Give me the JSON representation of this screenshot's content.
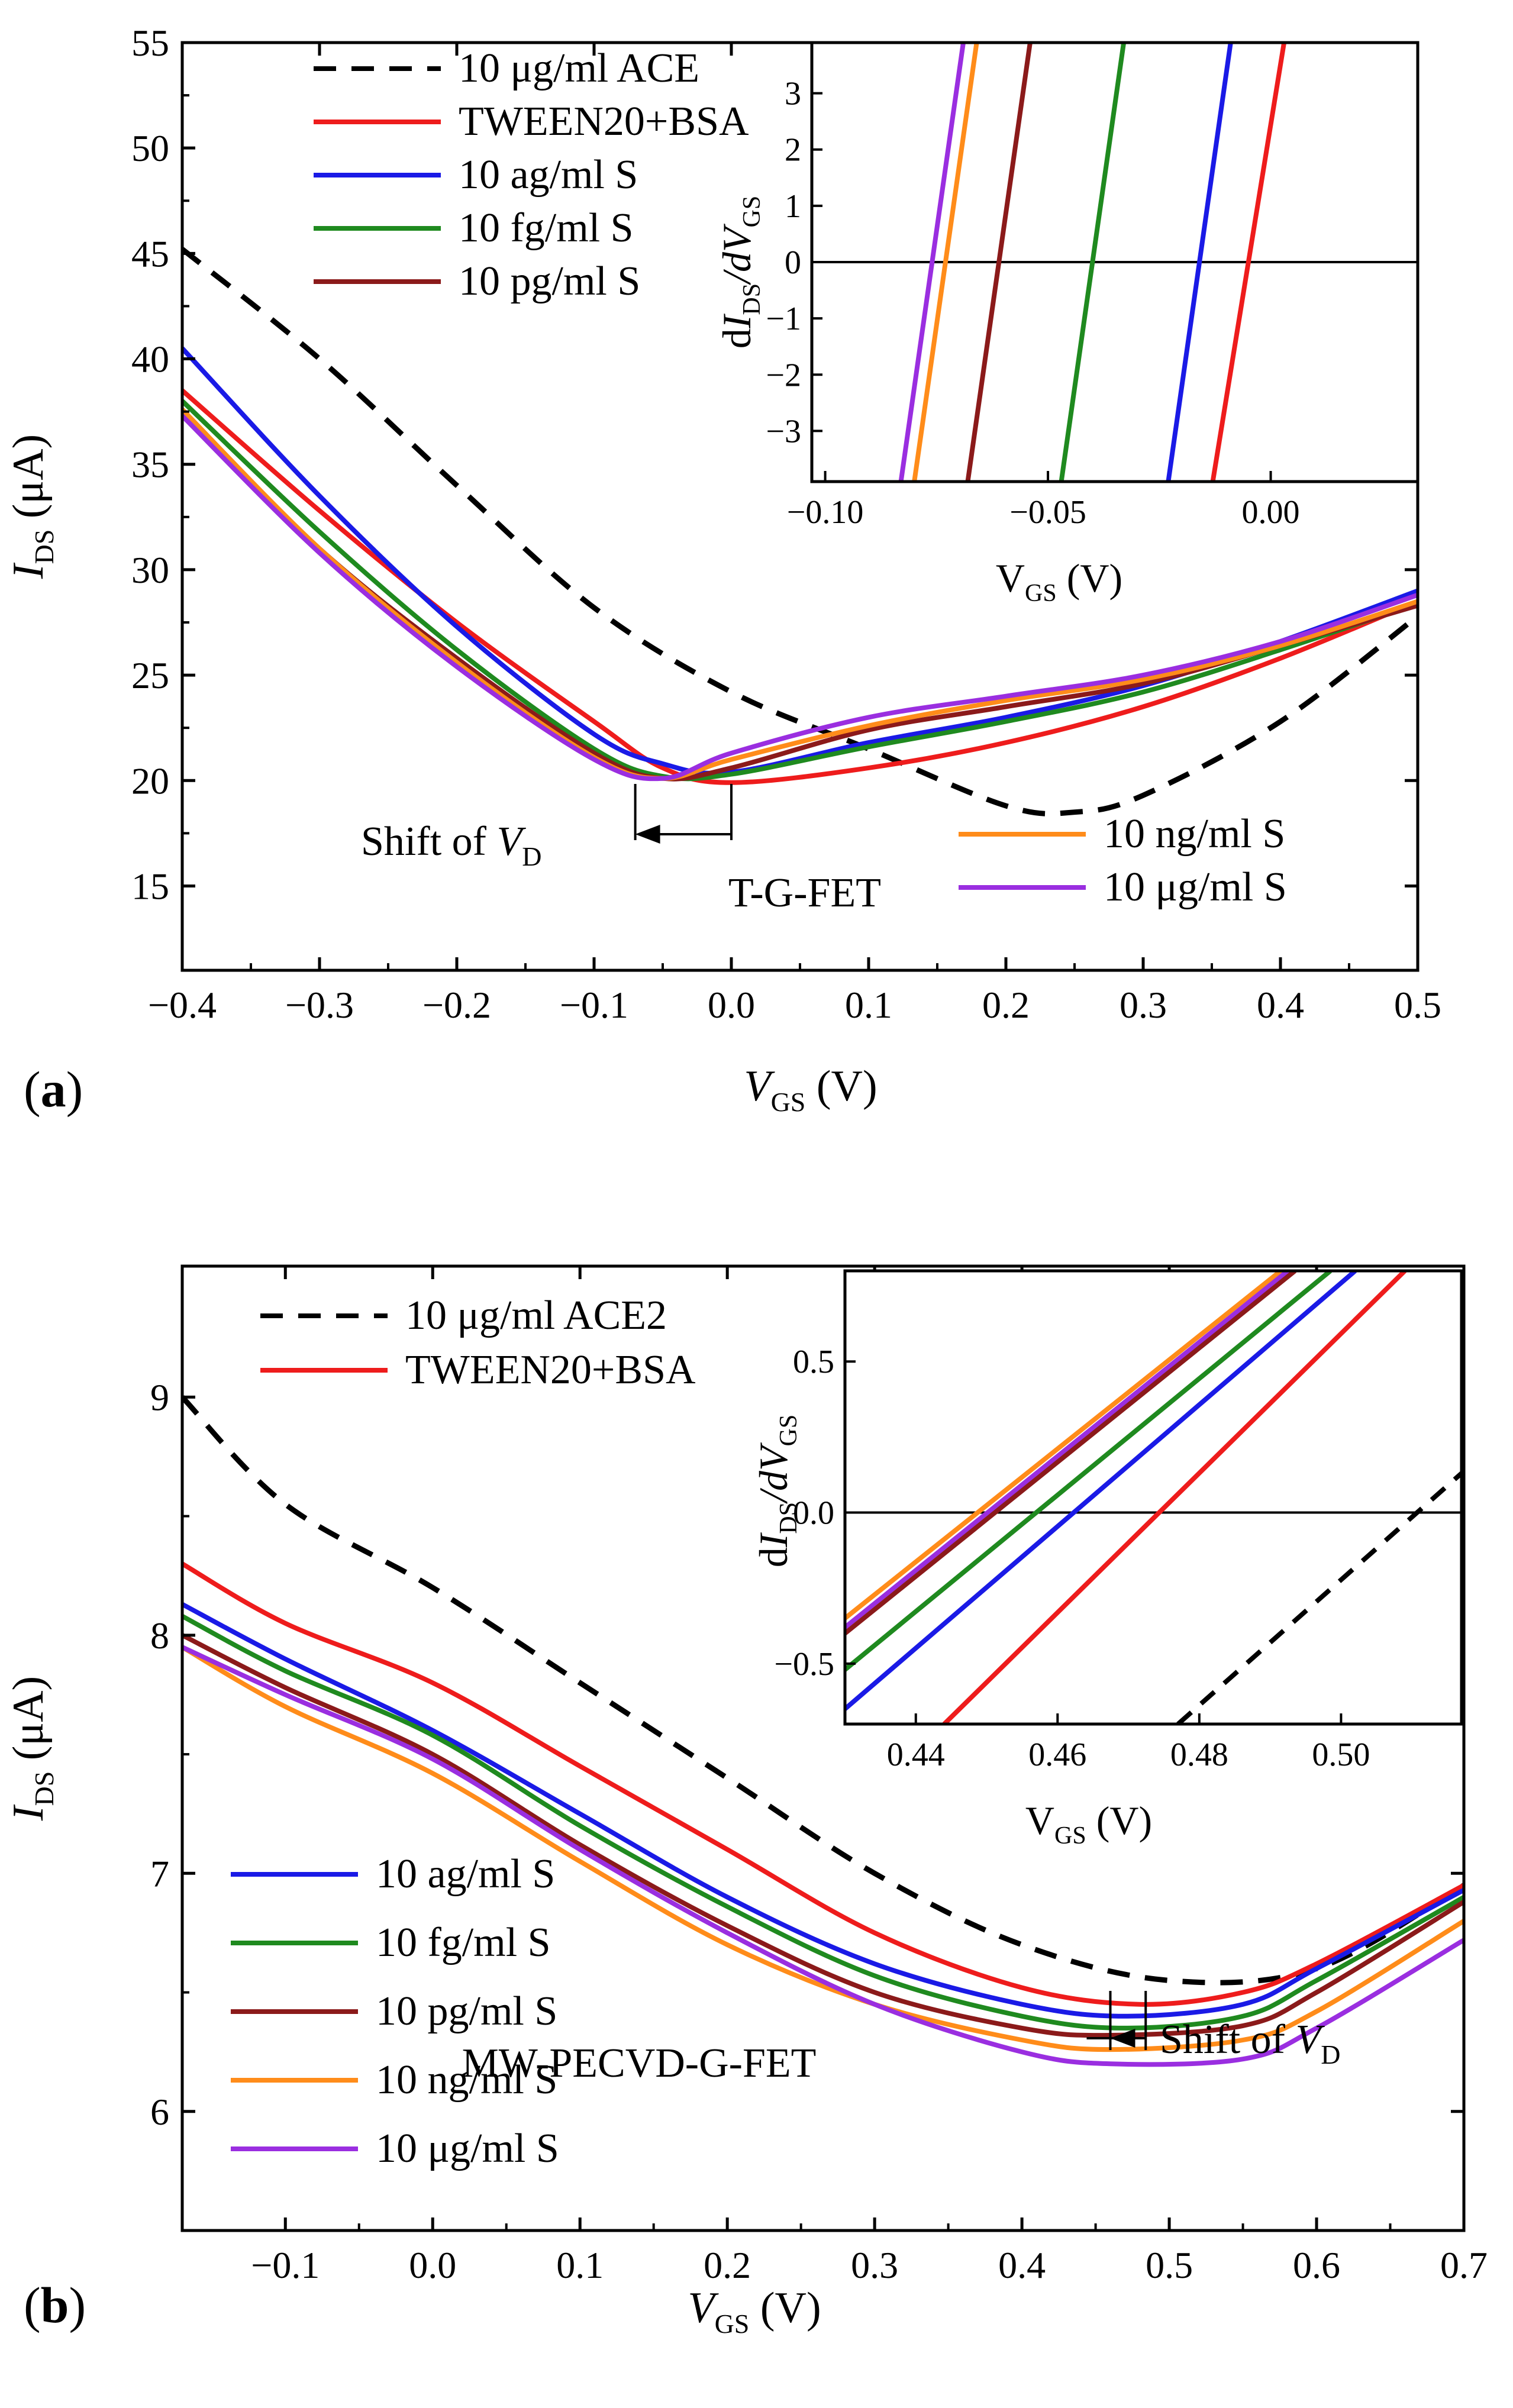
{
  "colors": {
    "ace": "#000000",
    "tween": "#ee1c1c",
    "ag": "#1a1ae6",
    "fg": "#1f8a1f",
    "pg": "#8b1a1a",
    "ng": "#ff8c1a",
    "ug": "#9a2ee0"
  },
  "chart_data": [
    {
      "id": "a",
      "type": "line",
      "panel_label": "a",
      "device": "T-G-FET",
      "title": "",
      "xlabel": {
        "main": "V",
        "sub": "GS",
        "unit": " (V)"
      },
      "ylabel": {
        "main": "I",
        "sub": "DS",
        "unit": " (μA)"
      },
      "xlim": [
        -0.4,
        0.5
      ],
      "ylim": [
        11,
        55
      ],
      "xticks": [
        -0.4,
        -0.3,
        -0.2,
        -0.1,
        0.0,
        0.1,
        0.2,
        0.3,
        0.4,
        0.5
      ],
      "xtick_labels": [
        "−0.4",
        "−0.3",
        "−0.2",
        "−0.1",
        "0.0",
        "0.1",
        "0.2",
        "0.3",
        "0.4",
        "0.5"
      ],
      "yticks": [
        15,
        20,
        25,
        30,
        35,
        40,
        45,
        50,
        55
      ],
      "ytick_labels": [
        "15",
        "20",
        "25",
        "30",
        "35",
        "40",
        "45",
        "50",
        "55"
      ],
      "annotation": {
        "text": "Shift of ",
        "var": "V",
        "sub": "D",
        "from_x": -0.07,
        "to_x": 0.0
      },
      "series": [
        {
          "name": "10 μg/ml ACE",
          "color_key": "ace",
          "dashed": true,
          "x": [
            -0.4,
            -0.3,
            -0.2,
            -0.1,
            0.0,
            0.1,
            0.2,
            0.25,
            0.3,
            0.4,
            0.5
          ],
          "y": [
            45.2,
            40.0,
            34.0,
            28.2,
            24.2,
            21.5,
            18.8,
            18.5,
            19.3,
            22.8,
            27.8
          ]
        },
        {
          "name": "TWEEN20+BSA",
          "color_key": "tween",
          "dashed": false,
          "x": [
            -0.4,
            -0.3,
            -0.2,
            -0.1,
            -0.05,
            0.0,
            0.1,
            0.2,
            0.3,
            0.4,
            0.5
          ],
          "y": [
            38.5,
            32.8,
            27.5,
            22.8,
            20.6,
            19.9,
            20.6,
            21.8,
            23.5,
            25.8,
            28.5
          ]
        },
        {
          "name": "10 ag/ml S",
          "color_key": "ag",
          "dashed": false,
          "x": [
            -0.4,
            -0.3,
            -0.2,
            -0.1,
            -0.05,
            0.0,
            0.1,
            0.2,
            0.3,
            0.4,
            0.5
          ],
          "y": [
            40.5,
            33.5,
            27.3,
            22.2,
            20.8,
            20.4,
            21.8,
            23.0,
            24.5,
            26.6,
            29.0
          ]
        },
        {
          "name": "10 fg/ml S",
          "color_key": "fg",
          "dashed": false,
          "x": [
            -0.4,
            -0.3,
            -0.2,
            -0.1,
            -0.05,
            0.0,
            0.1,
            0.2,
            0.3,
            0.4,
            0.5
          ],
          "y": [
            38.0,
            31.8,
            26.2,
            21.5,
            20.2,
            20.3,
            21.6,
            22.8,
            24.2,
            26.2,
            28.4
          ]
        },
        {
          "name": "10 pg/ml S",
          "color_key": "pg",
          "dashed": false,
          "x": [
            -0.4,
            -0.3,
            -0.2,
            -0.1,
            -0.05,
            0.0,
            0.1,
            0.2,
            0.3,
            0.4,
            0.5
          ],
          "y": [
            37.5,
            31.0,
            25.8,
            21.3,
            20.1,
            20.6,
            22.4,
            23.5,
            24.6,
            26.4,
            28.3
          ]
        },
        {
          "name": "10 ng/ml S",
          "color_key": "ng",
          "dashed": false,
          "x": [
            -0.4,
            -0.3,
            -0.2,
            -0.1,
            -0.05,
            0.0,
            0.1,
            0.2,
            0.3,
            0.4,
            0.5
          ],
          "y": [
            37.6,
            31.0,
            25.6,
            21.1,
            20.1,
            21.0,
            22.6,
            23.8,
            24.8,
            26.4,
            28.5
          ]
        },
        {
          "name": "10 μg/ml S",
          "color_key": "ug",
          "dashed": false,
          "x": [
            -0.4,
            -0.3,
            -0.2,
            -0.1,
            -0.05,
            0.0,
            0.1,
            0.2,
            0.3,
            0.4,
            0.5
          ],
          "y": [
            37.3,
            30.8,
            25.4,
            21.0,
            20.1,
            21.3,
            23.0,
            24.0,
            25.0,
            26.6,
            28.8
          ]
        }
      ],
      "legend_top": [
        "10 μg/ml ACE",
        "TWEEN20+BSA",
        "10 ag/ml S",
        "10 fg/ml S",
        "10 pg/ml S"
      ],
      "legend_bottom": [
        "10 ng/ml S",
        "10 μg/ml S"
      ],
      "inset": {
        "xlim": [
          -0.103,
          0.033
        ],
        "ylim": [
          -3.9,
          3.9
        ],
        "xticks": [
          -0.1,
          -0.05,
          0.0
        ],
        "xtick_labels": [
          "−0.10",
          "−0.05",
          "0.00"
        ],
        "yticks": [
          -3,
          -2,
          -1,
          0,
          1,
          2,
          3
        ],
        "ytick_labels": [
          "−3",
          "−2",
          "−1",
          "0",
          "1",
          "2",
          "3"
        ],
        "xlabel": {
          "main": "V",
          "sub": "GS",
          "unit": " (V)"
        },
        "ylabel": {
          "d1": "dI",
          "sub1": "DS",
          "slash": "/dV",
          "sub2": "GS"
        },
        "zero_line": 0,
        "series": [
          {
            "name": "10 μg/ml S",
            "color_key": "ug",
            "dashed": false,
            "x": [
              -0.083,
              -0.069
            ],
            "y": [
              -3.9,
              3.9
            ]
          },
          {
            "name": "10 ng/ml S",
            "color_key": "ng",
            "dashed": false,
            "x": [
              -0.08,
              -0.066
            ],
            "y": [
              -3.9,
              3.9
            ]
          },
          {
            "name": "10 pg/ml S",
            "color_key": "pg",
            "dashed": false,
            "x": [
              -0.068,
              -0.054
            ],
            "y": [
              -3.9,
              3.9
            ]
          },
          {
            "name": "10 fg/ml S",
            "color_key": "fg",
            "dashed": false,
            "x": [
              -0.047,
              -0.033
            ],
            "y": [
              -3.9,
              3.9
            ]
          },
          {
            "name": "10 ag/ml S",
            "color_key": "ag",
            "dashed": false,
            "x": [
              -0.023,
              -0.009
            ],
            "y": [
              -3.9,
              3.9
            ]
          },
          {
            "name": "TWEEN20+BSA",
            "color_key": "tween",
            "dashed": false,
            "x": [
              -0.013,
              0.003
            ],
            "y": [
              -3.9,
              3.9
            ]
          }
        ]
      }
    },
    {
      "id": "b",
      "type": "line",
      "panel_label": "b",
      "device": "MW-PECVD-G-FET",
      "title": "",
      "xlabel": {
        "main": "V",
        "sub": "GS",
        "unit": " (V)"
      },
      "ylabel": {
        "main": "I",
        "sub": "DS",
        "unit": " (μA)"
      },
      "xlim": [
        -0.17,
        0.7
      ],
      "ylim": [
        5.5,
        9.55
      ],
      "xticks": [
        -0.1,
        0.0,
        0.1,
        0.2,
        0.3,
        0.4,
        0.5,
        0.6,
        0.7
      ],
      "xtick_labels": [
        "−0.1",
        "0.0",
        "0.1",
        "0.2",
        "0.3",
        "0.4",
        "0.5",
        "0.6",
        "0.7"
      ],
      "yticks": [
        6,
        7,
        8,
        9
      ],
      "ytick_labels": [
        "6",
        "7",
        "8",
        "9"
      ],
      "annotation": {
        "text": "Shift of ",
        "var": "V",
        "sub": "D",
        "from_x": 0.484,
        "to_x": 0.46
      },
      "series": [
        {
          "name": "10 μg/ml ACE2",
          "color_key": "ace",
          "dashed": true,
          "x": [
            -0.17,
            -0.1,
            0.0,
            0.1,
            0.2,
            0.3,
            0.4,
            0.5,
            0.6,
            0.7
          ],
          "y": [
            9.0,
            8.55,
            8.2,
            7.8,
            7.4,
            7.0,
            6.7,
            6.55,
            6.6,
            6.95
          ]
        },
        {
          "name": "TWEEN20+BSA",
          "color_key": "tween",
          "dashed": false,
          "x": [
            -0.17,
            -0.1,
            0.0,
            0.1,
            0.2,
            0.3,
            0.4,
            0.48,
            0.55,
            0.6,
            0.7
          ],
          "y": [
            8.3,
            8.05,
            7.8,
            7.45,
            7.1,
            6.75,
            6.52,
            6.45,
            6.5,
            6.62,
            6.95
          ]
        },
        {
          "name": "10 ag/ml S",
          "color_key": "ag",
          "dashed": false,
          "x": [
            -0.17,
            -0.1,
            0.0,
            0.1,
            0.2,
            0.3,
            0.4,
            0.47,
            0.55,
            0.6,
            0.7
          ],
          "y": [
            8.13,
            7.9,
            7.6,
            7.25,
            6.9,
            6.62,
            6.45,
            6.4,
            6.45,
            6.6,
            6.93
          ]
        },
        {
          "name": "10 fg/ml S",
          "color_key": "fg",
          "dashed": false,
          "x": [
            -0.17,
            -0.1,
            0.0,
            0.1,
            0.2,
            0.3,
            0.4,
            0.47,
            0.55,
            0.6,
            0.7
          ],
          "y": [
            8.08,
            7.85,
            7.58,
            7.2,
            6.86,
            6.57,
            6.4,
            6.35,
            6.4,
            6.55,
            6.9
          ]
        },
        {
          "name": "10 pg/ml S",
          "color_key": "pg",
          "dashed": false,
          "x": [
            -0.17,
            -0.1,
            0.0,
            0.1,
            0.2,
            0.3,
            0.4,
            0.46,
            0.55,
            0.6,
            0.7
          ],
          "y": [
            8.0,
            7.78,
            7.5,
            7.12,
            6.78,
            6.5,
            6.35,
            6.32,
            6.36,
            6.5,
            6.88
          ]
        },
        {
          "name": "10 ng/ml S",
          "color_key": "ng",
          "dashed": false,
          "x": [
            -0.17,
            -0.1,
            0.0,
            0.1,
            0.2,
            0.3,
            0.4,
            0.46,
            0.55,
            0.6,
            0.7
          ],
          "y": [
            7.95,
            7.7,
            7.42,
            7.05,
            6.7,
            6.45,
            6.3,
            6.26,
            6.3,
            6.42,
            6.8
          ]
        },
        {
          "name": "10 μg/ml S",
          "color_key": "ug",
          "dashed": false,
          "x": [
            -0.17,
            -0.1,
            0.0,
            0.1,
            0.2,
            0.3,
            0.4,
            0.46,
            0.55,
            0.6,
            0.7
          ],
          "y": [
            7.95,
            7.75,
            7.48,
            7.1,
            6.75,
            6.45,
            6.25,
            6.2,
            6.22,
            6.35,
            6.72
          ]
        }
      ],
      "legend_top": [
        "10 μg/ml ACE2",
        "TWEEN20+BSA"
      ],
      "legend_bottom": [
        "10 ag/ml S",
        "10 fg/ml S",
        "10 pg/ml S",
        "10 ng/ml S",
        "10 μg/ml S"
      ],
      "inset": {
        "xlim": [
          0.43,
          0.517
        ],
        "ylim": [
          -0.7,
          0.8
        ],
        "xticks": [
          0.44,
          0.46,
          0.48,
          0.5
        ],
        "xtick_labels": [
          "0.44",
          "0.46",
          "0.48",
          "0.50"
        ],
        "yticks": [
          -0.5,
          0.0,
          0.5
        ],
        "ytick_labels": [
          "−0.5",
          "0.0",
          "0.5"
        ],
        "xlabel": {
          "main": "V",
          "sub": "GS",
          "unit": " (V)"
        },
        "ylabel": {
          "d1": "dI",
          "sub1": "DS",
          "slash": "/dV",
          "sub2": "GS"
        },
        "zero_line": 0,
        "series": [
          {
            "name": "10 ng/ml S",
            "color_key": "ng",
            "dashed": false,
            "x": [
              0.43,
              0.4915
            ],
            "y": [
              -0.35,
              0.8
            ]
          },
          {
            "name": "10 μg/ml S",
            "color_key": "ug",
            "dashed": false,
            "x": [
              0.43,
              0.4925
            ],
            "y": [
              -0.38,
              0.8
            ]
          },
          {
            "name": "10 pg/ml S",
            "color_key": "pg",
            "dashed": false,
            "x": [
              0.43,
              0.4935
            ],
            "y": [
              -0.4,
              0.8
            ]
          },
          {
            "name": "10 fg/ml S",
            "color_key": "fg",
            "dashed": false,
            "x": [
              0.43,
              0.4985
            ],
            "y": [
              -0.52,
              0.8
            ]
          },
          {
            "name": "10 ag/ml S",
            "color_key": "ag",
            "dashed": false,
            "x": [
              0.43,
              0.502
            ],
            "y": [
              -0.65,
              0.8
            ]
          },
          {
            "name": "TWEEN20+BSA",
            "color_key": "tween",
            "dashed": false,
            "x": [
              0.444,
              0.509
            ],
            "y": [
              -0.7,
              0.8
            ]
          },
          {
            "name": "10 μg/ml ACE2",
            "color_key": "ace",
            "dashed": true,
            "x": [
              0.477,
              0.517
            ],
            "y": [
              -0.7,
              0.13
            ]
          }
        ]
      }
    }
  ]
}
